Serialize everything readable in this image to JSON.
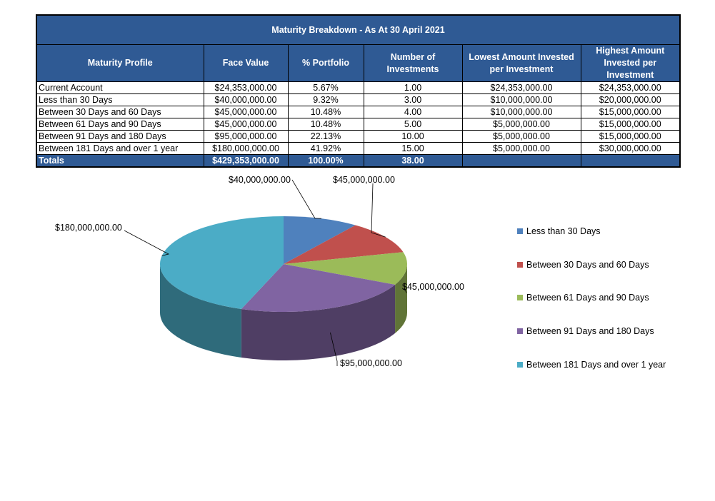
{
  "title": "Maturity Breakdown - As At 30 April 2021",
  "headers": [
    "Maturity Profile",
    "Face Value",
    "% Portfolio",
    "Number of Investments",
    "Lowest Amount Invested per Investment",
    "Highest Amount Invested per Investment"
  ],
  "rows": [
    [
      "Current Account",
      "$24,353,000.00",
      "5.67%",
      "1.00",
      "$24,353,000.00",
      "$24,353,000.00"
    ],
    [
      "Less than 30 Days",
      "$40,000,000.00",
      "9.32%",
      "3.00",
      "$10,000,000.00",
      "$20,000,000.00"
    ],
    [
      "Between 30 Days and 60 Days",
      "$45,000,000.00",
      "10.48%",
      "4.00",
      "$10,000,000.00",
      "$15,000,000.00"
    ],
    [
      "Between 61 Days and 90 Days",
      "$45,000,000.00",
      "10.48%",
      "5.00",
      "$5,000,000.00",
      "$15,000,000.00"
    ],
    [
      "Between 91 Days and 180 Days",
      "$95,000,000.00",
      "22.13%",
      "10.00",
      "$5,000,000.00",
      "$15,000,000.00"
    ],
    [
      "Between 181 Days and over 1 year",
      "$180,000,000.00",
      "41.92%",
      "15.00",
      "$5,000,000.00",
      "$30,000,000.00"
    ]
  ],
  "totals": [
    "Totals",
    "$429,353,000.00",
    "100.00%",
    "38.00",
    "",
    ""
  ],
  "chart_data": {
    "type": "pie",
    "title": "",
    "categories": [
      "Less than 30 Days",
      "Between 30 Days and 60 Days",
      "Between 61 Days and 90 Days",
      "Between 91 Days and 180 Days",
      "Between 181 Days and over 1 year"
    ],
    "values": [
      40000000,
      45000000,
      45000000,
      95000000,
      180000000
    ],
    "data_labels": [
      "$40,000,000.00",
      "$45,000,000.00",
      "$45,000,000.00",
      "$95,000,000.00",
      "$180,000,000.00"
    ],
    "colors": [
      "#4f81bd",
      "#c0504d",
      "#9bbb59",
      "#8064a2",
      "#4bacc6"
    ],
    "legend_position": "right",
    "style": "3d-pie"
  }
}
